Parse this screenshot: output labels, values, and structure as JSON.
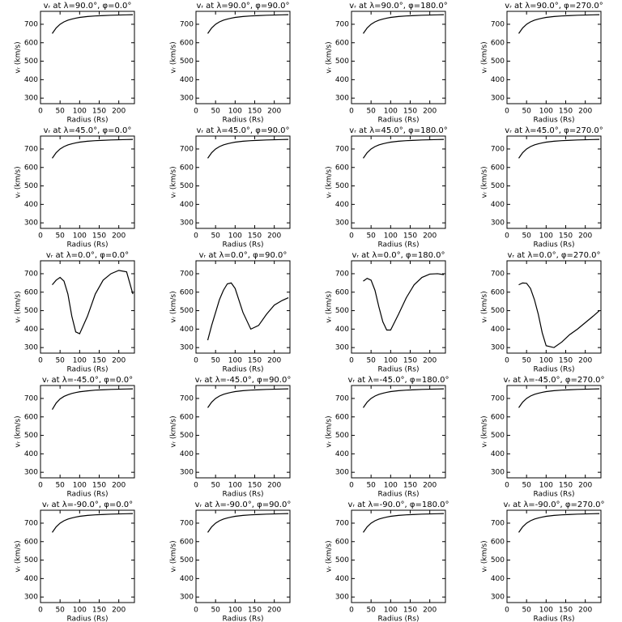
{
  "chart_data": [
    {
      "type": "line",
      "title": "vᵣ at λ=90.0°, φ=0.0°",
      "xlabel": "Radius (Rs)",
      "ylabel": "vᵣ (km/s)",
      "x": [
        30,
        40,
        50,
        60,
        70,
        80,
        90,
        100,
        120,
        140,
        160,
        180,
        200,
        220,
        236
      ],
      "values": [
        650,
        680,
        700,
        713,
        722,
        728,
        733,
        737,
        742,
        745,
        747,
        749,
        750,
        751,
        752
      ],
      "xlim": [
        0,
        240
      ],
      "ylim": [
        270,
        770
      ],
      "xticks": [
        0,
        50,
        100,
        150,
        200
      ],
      "yticks": [
        300,
        400,
        500,
        600,
        700
      ],
      "color": "#000000"
    },
    {
      "type": "line",
      "title": "vᵣ at λ=90.0°, φ=90.0°",
      "xlabel": "Radius (Rs)",
      "ylabel": "vᵣ (km/s)",
      "x": [
        30,
        40,
        50,
        60,
        70,
        80,
        90,
        100,
        120,
        140,
        160,
        180,
        200,
        220,
        236
      ],
      "values": [
        650,
        680,
        700,
        713,
        722,
        728,
        733,
        737,
        742,
        745,
        747,
        749,
        750,
        751,
        752
      ],
      "xlim": [
        0,
        240
      ],
      "ylim": [
        270,
        770
      ],
      "xticks": [
        0,
        50,
        100,
        150,
        200
      ],
      "yticks": [
        300,
        400,
        500,
        600,
        700
      ],
      "color": "#000000"
    },
    {
      "type": "line",
      "title": "vᵣ at λ=90.0°, φ=180.0°",
      "xlabel": "Radius (Rs)",
      "ylabel": "vᵣ (km/s)",
      "x": [
        30,
        40,
        50,
        60,
        70,
        80,
        90,
        100,
        120,
        140,
        160,
        180,
        200,
        220,
        236
      ],
      "values": [
        650,
        680,
        700,
        713,
        722,
        728,
        733,
        737,
        742,
        745,
        747,
        749,
        750,
        751,
        752
      ],
      "xlim": [
        0,
        240
      ],
      "ylim": [
        270,
        770
      ],
      "xticks": [
        0,
        50,
        100,
        150,
        200
      ],
      "yticks": [
        300,
        400,
        500,
        600,
        700
      ],
      "color": "#000000"
    },
    {
      "type": "line",
      "title": "vᵣ at λ=90.0°, φ=270.0°",
      "xlabel": "Radius (Rs)",
      "ylabel": "vᵣ (km/s)",
      "x": [
        30,
        40,
        50,
        60,
        70,
        80,
        90,
        100,
        120,
        140,
        160,
        180,
        200,
        220,
        236
      ],
      "values": [
        650,
        680,
        700,
        713,
        722,
        728,
        733,
        737,
        742,
        745,
        747,
        749,
        750,
        751,
        752
      ],
      "xlim": [
        0,
        240
      ],
      "ylim": [
        270,
        770
      ],
      "xticks": [
        0,
        50,
        100,
        150,
        200
      ],
      "yticks": [
        300,
        400,
        500,
        600,
        700
      ],
      "color": "#000000"
    },
    {
      "type": "line",
      "title": "vᵣ at λ=45.0°, φ=0.0°",
      "xlabel": "Radius (Rs)",
      "ylabel": "vᵣ (km/s)",
      "x": [
        30,
        40,
        50,
        60,
        70,
        80,
        90,
        100,
        120,
        140,
        160,
        180,
        200,
        220,
        236
      ],
      "values": [
        650,
        680,
        700,
        713,
        722,
        728,
        733,
        737,
        742,
        745,
        747,
        749,
        750,
        751,
        752
      ],
      "xlim": [
        0,
        240
      ],
      "ylim": [
        270,
        770
      ],
      "xticks": [
        0,
        50,
        100,
        150,
        200
      ],
      "yticks": [
        300,
        400,
        500,
        600,
        700
      ],
      "color": "#000000"
    },
    {
      "type": "line",
      "title": "vᵣ at λ=45.0°, φ=90.0°",
      "xlabel": "Radius (Rs)",
      "ylabel": "vᵣ (km/s)",
      "x": [
        30,
        40,
        50,
        60,
        70,
        80,
        90,
        100,
        120,
        140,
        160,
        180,
        200,
        220,
        236
      ],
      "values": [
        650,
        680,
        700,
        713,
        722,
        728,
        733,
        737,
        742,
        745,
        747,
        749,
        750,
        751,
        752
      ],
      "xlim": [
        0,
        240
      ],
      "ylim": [
        270,
        770
      ],
      "xticks": [
        0,
        50,
        100,
        150,
        200
      ],
      "yticks": [
        300,
        400,
        500,
        600,
        700
      ],
      "color": "#000000"
    },
    {
      "type": "line",
      "title": "vᵣ at λ=45.0°, φ=180.0°",
      "xlabel": "Radius (Rs)",
      "ylabel": "vᵣ (km/s)",
      "x": [
        30,
        40,
        50,
        60,
        70,
        80,
        90,
        100,
        120,
        140,
        160,
        180,
        200,
        220,
        236
      ],
      "values": [
        650,
        680,
        700,
        713,
        722,
        728,
        733,
        737,
        742,
        745,
        747,
        749,
        750,
        751,
        752
      ],
      "xlim": [
        0,
        240
      ],
      "ylim": [
        270,
        770
      ],
      "xticks": [
        0,
        50,
        100,
        150,
        200
      ],
      "yticks": [
        300,
        400,
        500,
        600,
        700
      ],
      "color": "#000000"
    },
    {
      "type": "line",
      "title": "vᵣ at λ=45.0°, φ=270.0°",
      "xlabel": "Radius (Rs)",
      "ylabel": "vᵣ (km/s)",
      "x": [
        30,
        40,
        50,
        60,
        70,
        80,
        90,
        100,
        120,
        140,
        160,
        180,
        200,
        220,
        236
      ],
      "values": [
        650,
        680,
        700,
        713,
        722,
        728,
        733,
        737,
        742,
        745,
        747,
        749,
        750,
        751,
        752
      ],
      "xlim": [
        0,
        240
      ],
      "ylim": [
        270,
        770
      ],
      "xticks": [
        0,
        50,
        100,
        150,
        200
      ],
      "yticks": [
        300,
        400,
        500,
        600,
        700
      ],
      "color": "#000000"
    },
    {
      "type": "line",
      "title": "vᵣ at λ=0.0°, φ=0.0°",
      "xlabel": "Radius (Rs)",
      "ylabel": "vᵣ (km/s)",
      "x": [
        30,
        40,
        50,
        60,
        70,
        80,
        90,
        100,
        120,
        140,
        160,
        180,
        200,
        220,
        236
      ],
      "values": [
        640,
        665,
        680,
        660,
        590,
        470,
        385,
        375,
        470,
        590,
        665,
        700,
        718,
        710,
        590
      ],
      "xlim": [
        0,
        240
      ],
      "ylim": [
        270,
        770
      ],
      "xticks": [
        0,
        50,
        100,
        150,
        200
      ],
      "yticks": [
        300,
        400,
        500,
        600,
        700
      ],
      "color": "#000000"
    },
    {
      "type": "line",
      "title": "vᵣ at λ=0.0°, φ=90.0°",
      "xlabel": "Radius (Rs)",
      "ylabel": "vᵣ (km/s)",
      "x": [
        30,
        40,
        50,
        60,
        70,
        80,
        90,
        100,
        120,
        140,
        160,
        180,
        200,
        220,
        236
      ],
      "values": [
        340,
        420,
        490,
        560,
        610,
        645,
        650,
        620,
        490,
        400,
        420,
        480,
        530,
        555,
        570
      ],
      "xlim": [
        0,
        240
      ],
      "ylim": [
        270,
        770
      ],
      "xticks": [
        0,
        50,
        100,
        150,
        200
      ],
      "yticks": [
        300,
        400,
        500,
        600,
        700
      ],
      "color": "#000000"
    },
    {
      "type": "line",
      "title": "vᵣ at λ=0.0°, φ=180.0°",
      "xlabel": "Radius (Rs)",
      "ylabel": "vᵣ (km/s)",
      "x": [
        30,
        40,
        50,
        60,
        70,
        80,
        90,
        100,
        120,
        140,
        160,
        180,
        200,
        220,
        236
      ],
      "values": [
        660,
        675,
        665,
        610,
        520,
        440,
        395,
        395,
        480,
        570,
        640,
        680,
        698,
        700,
        695
      ],
      "xlim": [
        0,
        240
      ],
      "ylim": [
        270,
        770
      ],
      "xticks": [
        0,
        50,
        100,
        150,
        200
      ],
      "yticks": [
        300,
        400,
        500,
        600,
        700
      ],
      "color": "#000000"
    },
    {
      "type": "line",
      "title": "vᵣ at λ=0.0°, φ=270.0°",
      "xlabel": "Radius (Rs)",
      "ylabel": "vᵣ (km/s)",
      "x": [
        30,
        40,
        50,
        60,
        70,
        80,
        90,
        100,
        120,
        140,
        160,
        180,
        200,
        220,
        236
      ],
      "values": [
        640,
        650,
        648,
        620,
        560,
        480,
        380,
        310,
        300,
        330,
        370,
        400,
        435,
        470,
        500
      ],
      "xlim": [
        0,
        240
      ],
      "ylim": [
        270,
        770
      ],
      "xticks": [
        0,
        50,
        100,
        150,
        200
      ],
      "yticks": [
        300,
        400,
        500,
        600,
        700
      ],
      "color": "#000000"
    },
    {
      "type": "line",
      "title": "vᵣ at λ=-45.0°, φ=0.0°",
      "xlabel": "Radius (Rs)",
      "ylabel": "vᵣ (km/s)",
      "x": [
        30,
        40,
        50,
        60,
        70,
        80,
        90,
        100,
        120,
        140,
        160,
        180,
        200,
        220,
        236
      ],
      "values": [
        640,
        675,
        697,
        711,
        720,
        727,
        732,
        736,
        741,
        745,
        747,
        749,
        750,
        751,
        752
      ],
      "xlim": [
        0,
        240
      ],
      "ylim": [
        270,
        770
      ],
      "xticks": [
        0,
        50,
        100,
        150,
        200
      ],
      "yticks": [
        300,
        400,
        500,
        600,
        700
      ],
      "color": "#000000"
    },
    {
      "type": "line",
      "title": "vᵣ at λ=-45.0°, φ=90.0°",
      "xlabel": "Radius (Rs)",
      "ylabel": "vᵣ (km/s)",
      "x": [
        30,
        40,
        50,
        60,
        70,
        80,
        90,
        100,
        120,
        140,
        160,
        180,
        200,
        220,
        236
      ],
      "values": [
        650,
        680,
        700,
        713,
        722,
        728,
        733,
        737,
        742,
        745,
        747,
        749,
        750,
        751,
        752
      ],
      "xlim": [
        0,
        240
      ],
      "ylim": [
        270,
        770
      ],
      "xticks": [
        0,
        50,
        100,
        150,
        200
      ],
      "yticks": [
        300,
        400,
        500,
        600,
        700
      ],
      "color": "#000000"
    },
    {
      "type": "line",
      "title": "vᵣ at λ=-45.0°, φ=180.0°",
      "xlabel": "Radius (Rs)",
      "ylabel": "vᵣ (km/s)",
      "x": [
        30,
        40,
        50,
        60,
        70,
        80,
        90,
        100,
        120,
        140,
        160,
        180,
        200,
        220,
        236
      ],
      "values": [
        650,
        680,
        700,
        713,
        722,
        728,
        733,
        737,
        742,
        745,
        747,
        749,
        750,
        751,
        752
      ],
      "xlim": [
        0,
        240
      ],
      "ylim": [
        270,
        770
      ],
      "xticks": [
        0,
        50,
        100,
        150,
        200
      ],
      "yticks": [
        300,
        400,
        500,
        600,
        700
      ],
      "color": "#000000"
    },
    {
      "type": "line",
      "title": "vᵣ at λ=-45.0°, φ=270.0°",
      "xlabel": "Radius (Rs)",
      "ylabel": "vᵣ (km/s)",
      "x": [
        30,
        40,
        50,
        60,
        70,
        80,
        90,
        100,
        120,
        140,
        160,
        180,
        200,
        220,
        236
      ],
      "values": [
        650,
        680,
        700,
        713,
        722,
        728,
        733,
        737,
        742,
        745,
        747,
        749,
        750,
        751,
        752
      ],
      "xlim": [
        0,
        240
      ],
      "ylim": [
        270,
        770
      ],
      "xticks": [
        0,
        50,
        100,
        150,
        200
      ],
      "yticks": [
        300,
        400,
        500,
        600,
        700
      ],
      "color": "#000000"
    },
    {
      "type": "line",
      "title": "vᵣ at λ=-90.0°, φ=0.0°",
      "xlabel": "Radius (Rs)",
      "ylabel": "vᵣ (km/s)",
      "x": [
        30,
        40,
        50,
        60,
        70,
        80,
        90,
        100,
        120,
        140,
        160,
        180,
        200,
        220,
        236
      ],
      "values": [
        650,
        680,
        700,
        713,
        722,
        728,
        733,
        737,
        742,
        745,
        747,
        749,
        750,
        751,
        752
      ],
      "xlim": [
        0,
        240
      ],
      "ylim": [
        270,
        770
      ],
      "xticks": [
        0,
        50,
        100,
        150,
        200
      ],
      "yticks": [
        300,
        400,
        500,
        600,
        700
      ],
      "color": "#000000"
    },
    {
      "type": "line",
      "title": "vᵣ at λ=-90.0°, φ=90.0°",
      "xlabel": "Radius (Rs)",
      "ylabel": "vᵣ (km/s)",
      "x": [
        30,
        40,
        50,
        60,
        70,
        80,
        90,
        100,
        120,
        140,
        160,
        180,
        200,
        220,
        236
      ],
      "values": [
        650,
        680,
        700,
        713,
        722,
        728,
        733,
        737,
        742,
        745,
        747,
        749,
        750,
        751,
        752
      ],
      "xlim": [
        0,
        240
      ],
      "ylim": [
        270,
        770
      ],
      "xticks": [
        0,
        50,
        100,
        150,
        200
      ],
      "yticks": [
        300,
        400,
        500,
        600,
        700
      ],
      "color": "#000000"
    },
    {
      "type": "line",
      "title": "vᵣ at λ=-90.0°, φ=180.0°",
      "xlabel": "Radius (Rs)",
      "ylabel": "vᵣ (km/s)",
      "x": [
        30,
        40,
        50,
        60,
        70,
        80,
        90,
        100,
        120,
        140,
        160,
        180,
        200,
        220,
        236
      ],
      "values": [
        650,
        680,
        700,
        713,
        722,
        728,
        733,
        737,
        742,
        745,
        747,
        749,
        750,
        751,
        752
      ],
      "xlim": [
        0,
        240
      ],
      "ylim": [
        270,
        770
      ],
      "xticks": [
        0,
        50,
        100,
        150,
        200
      ],
      "yticks": [
        300,
        400,
        500,
        600,
        700
      ],
      "color": "#000000"
    },
    {
      "type": "line",
      "title": "vᵣ at λ=-90.0°, φ=270.0°",
      "xlabel": "Radius (Rs)",
      "ylabel": "vᵣ (km/s)",
      "x": [
        30,
        40,
        50,
        60,
        70,
        80,
        90,
        100,
        120,
        140,
        160,
        180,
        200,
        220,
        236
      ],
      "values": [
        650,
        680,
        700,
        713,
        722,
        728,
        733,
        737,
        742,
        745,
        747,
        749,
        750,
        751,
        752
      ],
      "xlim": [
        0,
        240
      ],
      "ylim": [
        270,
        770
      ],
      "xticks": [
        0,
        50,
        100,
        150,
        200
      ],
      "yticks": [
        300,
        400,
        500,
        600,
        700
      ],
      "color": "#000000"
    }
  ]
}
